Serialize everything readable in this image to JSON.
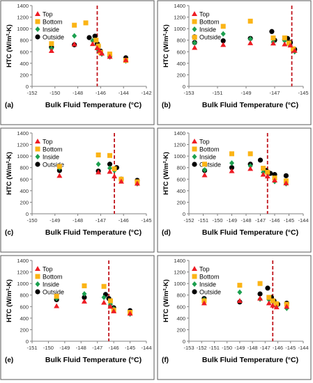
{
  "figure": {
    "ylabel": "HTC (W/m²-K)",
    "xlabel": "Bulk Fluid Temperature (°C)",
    "legend": [
      "Top",
      "Bottom",
      "Inside",
      "Outside"
    ],
    "colors": {
      "Top": "#ee1c24",
      "Bottom": "#fbb416",
      "Inside": "#1ca04f",
      "Outside": "#000000",
      "vline": "#c0141c"
    }
  },
  "chart_data": [
    {
      "panel": "(a)",
      "type": "scatter",
      "xlabel": "Bulk Fluid Temperature (°C)",
      "ylabel": "HTC (W/m²-K)",
      "xlim": [
        -152,
        -142
      ],
      "ylim": [
        0,
        1400
      ],
      "xticks": [
        -152,
        -150,
        -148,
        -146,
        -144,
        -142
      ],
      "yticks": [
        0,
        200,
        400,
        600,
        800,
        1000,
        1200,
        1400
      ],
      "vline": -146.3,
      "legend_position": "top-left",
      "series": [
        {
          "name": "Top",
          "points": [
            [
              -150.3,
              615
            ],
            [
              -148.3,
              730
            ],
            [
              -146.7,
              735
            ],
            [
              -146.3,
              665
            ],
            [
              -146.1,
              620
            ],
            [
              -145.9,
              570
            ],
            [
              -145.2,
              515
            ],
            [
              -143.8,
              455
            ]
          ]
        },
        {
          "name": "Bottom",
          "points": [
            [
              -150.3,
              740
            ],
            [
              -148.3,
              1060
            ],
            [
              -147.3,
              1100
            ],
            [
              -146.4,
              800
            ],
            [
              -146.2,
              700
            ],
            [
              -146.0,
              590
            ],
            [
              -145.2,
              560
            ],
            [
              -143.8,
              450
            ]
          ]
        },
        {
          "name": "Inside",
          "points": [
            [
              -150.3,
              655
            ],
            [
              -148.3,
              875
            ],
            [
              -146.7,
              790
            ],
            [
              -146.3,
              650
            ],
            [
              -146.1,
              590
            ],
            [
              -145.9,
              560
            ],
            [
              -145.2,
              510
            ],
            [
              -143.8,
              440
            ]
          ]
        },
        {
          "name": "Outside",
          "points": [
            [
              -150.3,
              680
            ],
            [
              -148.3,
              720
            ],
            [
              -147.0,
              845
            ],
            [
              -146.5,
              870
            ],
            [
              -146.3,
              740
            ],
            [
              -146.2,
              700
            ],
            [
              -146.0,
              610
            ],
            [
              -145.2,
              530
            ],
            [
              -143.8,
              495
            ]
          ]
        }
      ]
    },
    {
      "panel": "(b)",
      "type": "scatter",
      "xlabel": "Bulk Fluid Temperature (°C)",
      "ylabel": "HTC (W/m²-K)",
      "xlim": [
        -153,
        -145
      ],
      "ylim": [
        0,
        1400
      ],
      "xticks": [
        -153,
        -151,
        -149,
        -147,
        -145
      ],
      "yticks": [
        0,
        200,
        400,
        600,
        800,
        1000,
        1200,
        1400
      ],
      "vline": -145.8,
      "legend_position": "top-left",
      "series": [
        {
          "name": "Top",
          "points": [
            [
              -152.6,
              670
            ],
            [
              -150.6,
              720
            ],
            [
              -148.7,
              750
            ],
            [
              -147.1,
              745
            ],
            [
              -146.3,
              730
            ],
            [
              -145.9,
              710
            ],
            [
              -145.6,
              620
            ]
          ]
        },
        {
          "name": "Bottom",
          "points": [
            [
              -152.6,
              850
            ],
            [
              -150.6,
              1040
            ],
            [
              -148.7,
              1130
            ],
            [
              -147.1,
              840
            ],
            [
              -146.3,
              840
            ],
            [
              -146.0,
              750
            ],
            [
              -145.7,
              650
            ]
          ]
        },
        {
          "name": "Inside",
          "points": [
            [
              -152.6,
              755
            ],
            [
              -150.6,
              910
            ],
            [
              -148.7,
              820
            ],
            [
              -147.1,
              770
            ],
            [
              -146.3,
              790
            ],
            [
              -146.0,
              730
            ],
            [
              -145.6,
              600
            ]
          ]
        },
        {
          "name": "Outside",
          "points": [
            [
              -152.6,
              760
            ],
            [
              -150.6,
              790
            ],
            [
              -148.7,
              830
            ],
            [
              -147.2,
              950
            ],
            [
              -147.0,
              800
            ],
            [
              -146.3,
              810
            ],
            [
              -146.1,
              830
            ],
            [
              -145.9,
              760
            ],
            [
              -145.6,
              640
            ]
          ]
        }
      ]
    },
    {
      "panel": "(c)",
      "type": "scatter",
      "xlabel": "Bulk Fluid Temperature (°C)",
      "ylabel": "HTC (W/m²-K)",
      "xlim": [
        -150,
        -145
      ],
      "ylim": [
        0,
        1400
      ],
      "xticks": [
        -150,
        -149,
        -148,
        -147,
        -146,
        -145
      ],
      "yticks": [
        0,
        200,
        400,
        600,
        800,
        1000,
        1200,
        1400
      ],
      "vline": -146.4,
      "legend_position": "top-left",
      "series": [
        {
          "name": "Top",
          "points": [
            [
              -148.8,
              660
            ],
            [
              -147.1,
              720
            ],
            [
              -146.6,
              730
            ],
            [
              -146.4,
              650
            ],
            [
              -146.1,
              560
            ],
            [
              -145.4,
              525
            ]
          ]
        },
        {
          "name": "Bottom",
          "points": [
            [
              -148.8,
              820
            ],
            [
              -147.1,
              1020
            ],
            [
              -146.6,
              1010
            ],
            [
              -146.4,
              780
            ],
            [
              -146.1,
              600
            ],
            [
              -145.4,
              555
            ]
          ]
        },
        {
          "name": "Inside",
          "points": [
            [
              -148.8,
              790
            ],
            [
              -147.1,
              860
            ],
            [
              -146.6,
              790
            ],
            [
              -146.4,
              750
            ],
            [
              -146.1,
              570
            ],
            [
              -145.4,
              520
            ]
          ]
        },
        {
          "name": "Outside",
          "points": [
            [
              -148.8,
              750
            ],
            [
              -147.1,
              740
            ],
            [
              -146.6,
              860
            ],
            [
              -146.3,
              800
            ],
            [
              -146.1,
              600
            ],
            [
              -145.4,
              580
            ]
          ]
        }
      ]
    },
    {
      "panel": "(d)",
      "type": "scatter",
      "xlabel": "Bulk Fluid Temperature (°C)",
      "ylabel": "HTC (W/m²-K)",
      "xlim": [
        -152,
        -144
      ],
      "ylim": [
        0,
        1400
      ],
      "xticks": [
        -152,
        -151,
        -150,
        -149,
        -148,
        -147,
        -146,
        -145,
        -144
      ],
      "yticks": [
        0,
        200,
        400,
        600,
        800,
        1000,
        1200,
        1400
      ],
      "vline": -146.5,
      "legend_position": "top-left",
      "series": [
        {
          "name": "Top",
          "points": [
            [
              -150.9,
              670
            ],
            [
              -149.0,
              740
            ],
            [
              -147.7,
              780
            ],
            [
              -146.8,
              680
            ],
            [
              -146.5,
              650
            ],
            [
              -146.0,
              580
            ],
            [
              -145.2,
              530
            ]
          ]
        },
        {
          "name": "Bottom",
          "points": [
            [
              -150.9,
              860
            ],
            [
              -149.0,
              1040
            ],
            [
              -147.7,
              1040
            ],
            [
              -146.8,
              790
            ],
            [
              -146.5,
              720
            ],
            [
              -146.0,
              620
            ],
            [
              -145.2,
              570
            ]
          ]
        },
        {
          "name": "Inside",
          "points": [
            [
              -150.9,
              760
            ],
            [
              -149.0,
              880
            ],
            [
              -147.7,
              830
            ],
            [
              -146.8,
              720
            ],
            [
              -146.5,
              700
            ],
            [
              -146.0,
              560
            ],
            [
              -145.2,
              520
            ]
          ]
        },
        {
          "name": "Outside",
          "points": [
            [
              -150.9,
              750
            ],
            [
              -149.0,
              800
            ],
            [
              -147.7,
              860
            ],
            [
              -147.0,
              930
            ],
            [
              -146.6,
              750
            ],
            [
              -146.5,
              720
            ],
            [
              -146.3,
              700
            ],
            [
              -146.0,
              680
            ],
            [
              -145.2,
              660
            ]
          ]
        }
      ]
    },
    {
      "panel": "(e)",
      "type": "scatter",
      "xlabel": "Bulk Fluid Temperature (°C)",
      "ylabel": "HTC (W/m²-K)",
      "xlim": [
        -151,
        -144
      ],
      "ylim": [
        0,
        1400
      ],
      "xticks": [
        -151,
        -150,
        -149,
        -148,
        -147,
        -146,
        -145,
        -144
      ],
      "yticks": [
        0,
        200,
        400,
        600,
        800,
        1000,
        1200,
        1400
      ],
      "vline": -146.3,
      "legend_position": "top-left",
      "series": [
        {
          "name": "Top",
          "points": [
            [
              -149.5,
              610
            ],
            [
              -147.8,
              690
            ],
            [
              -146.6,
              670
            ],
            [
              -146.2,
              600
            ],
            [
              -146.0,
              520
            ],
            [
              -145.0,
              480
            ]
          ]
        },
        {
          "name": "Bottom",
          "points": [
            [
              -149.5,
              780
            ],
            [
              -147.8,
              960
            ],
            [
              -146.6,
              950
            ],
            [
              -146.2,
              700
            ],
            [
              -146.0,
              540
            ],
            [
              -145.0,
              500
            ]
          ]
        },
        {
          "name": "Inside",
          "points": [
            [
              -149.5,
              740
            ],
            [
              -147.8,
              820
            ],
            [
              -146.6,
              760
            ],
            [
              -146.2,
              640
            ],
            [
              -146.0,
              560
            ],
            [
              -145.0,
              470
            ]
          ]
        },
        {
          "name": "Outside",
          "points": [
            [
              -149.5,
              720
            ],
            [
              -147.8,
              760
            ],
            [
              -146.5,
              810
            ],
            [
              -146.3,
              740
            ],
            [
              -146.0,
              580
            ],
            [
              -145.0,
              530
            ]
          ]
        }
      ]
    },
    {
      "panel": "(f)",
      "type": "scatter",
      "xlabel": "Bulk Fluid Temperature (°C)",
      "ylabel": "HTC (W/m²-K)",
      "xlim": [
        -153,
        -144
      ],
      "ylim": [
        0,
        1400
      ],
      "xticks": [
        -153,
        -152,
        -151,
        -150,
        -149,
        -148,
        -147,
        -146,
        -145,
        -144
      ],
      "yticks": [
        0,
        200,
        400,
        600,
        800,
        1000,
        1200,
        1400
      ],
      "vline": -146.4,
      "legend_position": "top-left",
      "series": [
        {
          "name": "Top",
          "points": [
            [
              -151.8,
              660
            ],
            [
              -149.0,
              700
            ],
            [
              -147.4,
              740
            ],
            [
              -146.7,
              660
            ],
            [
              -146.4,
              620
            ],
            [
              -146.1,
              590
            ],
            [
              -145.3,
              600
            ]
          ]
        },
        {
          "name": "Bottom",
          "points": [
            [
              -151.8,
              700
            ],
            [
              -149.0,
              970
            ],
            [
              -147.4,
              1000
            ],
            [
              -146.7,
              760
            ],
            [
              -146.4,
              700
            ],
            [
              -146.1,
              650
            ],
            [
              -145.3,
              640
            ]
          ]
        },
        {
          "name": "Inside",
          "points": [
            [
              -151.8,
              720
            ],
            [
              -149.0,
              850
            ],
            [
              -147.4,
              730
            ],
            [
              -146.7,
              720
            ],
            [
              -146.4,
              680
            ],
            [
              -146.1,
              610
            ],
            [
              -145.3,
              570
            ]
          ]
        },
        {
          "name": "Outside",
          "points": [
            [
              -151.8,
              740
            ],
            [
              -149.0,
              680
            ],
            [
              -147.4,
              820
            ],
            [
              -146.8,
              920
            ],
            [
              -146.5,
              760
            ],
            [
              -146.3,
              700
            ],
            [
              -146.0,
              640
            ],
            [
              -145.3,
              660
            ]
          ]
        }
      ]
    }
  ]
}
